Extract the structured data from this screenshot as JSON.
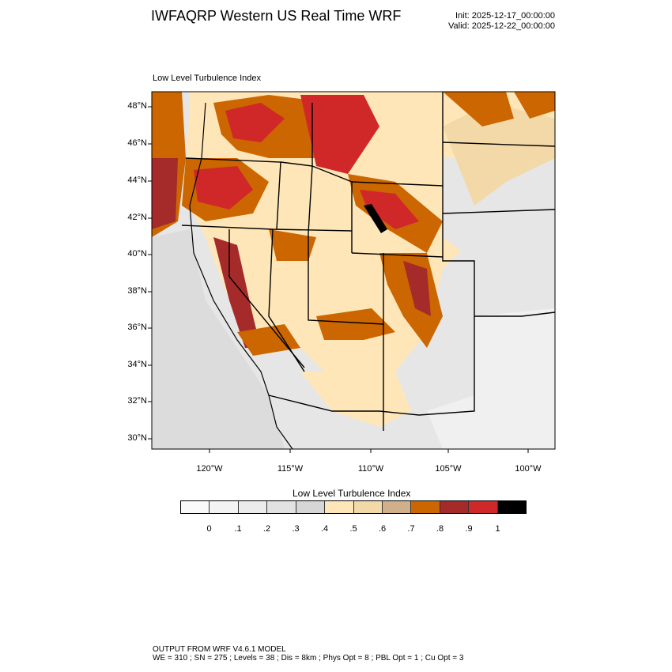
{
  "header": {
    "title": "IWFAQRP Western US Real Time WRF",
    "init": "Init: 2025-12-17_00:00:00",
    "valid": "Valid: 2025-12-22_00:00:00"
  },
  "map": {
    "label": "Low Level Turbulence Index",
    "lat_ticks": [
      "48°N",
      "46°N",
      "44°N",
      "42°N",
      "40°N",
      "38°N",
      "36°N",
      "34°N",
      "32°N",
      "30°N"
    ],
    "lon_ticks": [
      "120°W",
      "115°W",
      "110°W",
      "105°W",
      "100°W"
    ]
  },
  "colorbar": {
    "title": "Low Level Turbulence Index",
    "labels": [
      "0",
      ".1",
      ".2",
      ".3",
      ".4",
      ".5",
      ".6",
      ".7",
      ".8",
      ".9",
      "1"
    ],
    "colors": [
      "#fafafa",
      "#f3f3f3",
      "#ececec",
      "#e2e2e2",
      "#d6d6d6",
      "#ffe6b8",
      "#f3d8a8",
      "#d0b08a",
      "#cc6600",
      "#a52a2a",
      "#d02828",
      "#000000"
    ]
  },
  "footer": {
    "line1": "OUTPUT FROM WRF V4.6.1 MODEL",
    "line2": "WE = 310 ; SN = 275 ; Levels = 38 ; Dis = 8km ; Phys Opt = 8 ; PBL Opt = 1 ; Cu Opt = 3"
  }
}
